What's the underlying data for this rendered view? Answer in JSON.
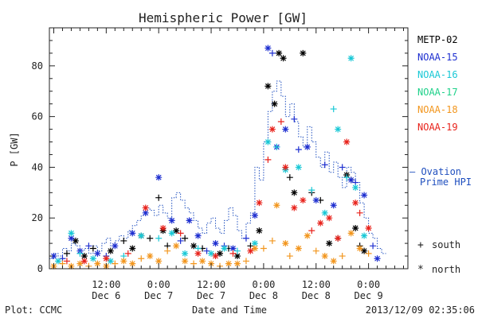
{
  "chart_data": {
    "type": "scatter",
    "title": "Hemispheric Power [GW]",
    "ylabel": "P [GW]",
    "xlabel": "Date and Time",
    "ylim": [
      0,
      95
    ],
    "xlim_hours": [
      -13,
      69
    ],
    "yticks": [
      0,
      20,
      40,
      60,
      80
    ],
    "xticks": [
      {
        "hour": 0,
        "time": "12:00",
        "date": "Dec 6"
      },
      {
        "hour": 12,
        "time": "0:00",
        "date": "Dec 7"
      },
      {
        "hour": 24,
        "time": "12:00",
        "date": "Dec 7"
      },
      {
        "hour": 36,
        "time": "0:00",
        "date": "Dec 8"
      },
      {
        "hour": 48,
        "time": "12:00",
        "date": "Dec 8"
      },
      {
        "hour": 60,
        "time": "0:00",
        "date": "Dec 9"
      }
    ],
    "legend_placement": "right",
    "marker_legend": {
      "south": "south",
      "north": "north",
      "south_symbol": "+",
      "north_symbol": "*"
    },
    "ovation_label": {
      "line1": "— Ovation",
      "line2": "Prime HPI",
      "color": "#1f4fbf"
    },
    "series": [
      {
        "name": "METP-02",
        "color": "#000000",
        "points": [
          {
            "x": -9,
            "y": 6,
            "m": "+"
          },
          {
            "x": -7,
            "y": 11,
            "m": "*"
          },
          {
            "x": -5,
            "y": 5,
            "m": "*"
          },
          {
            "x": -3,
            "y": 8,
            "m": "+"
          },
          {
            "x": 1,
            "y": 7,
            "m": "*"
          },
          {
            "x": 4,
            "y": 11,
            "m": "+"
          },
          {
            "x": 6,
            "y": 8,
            "m": "*"
          },
          {
            "x": 8,
            "y": 13,
            "m": "*"
          },
          {
            "x": 10,
            "y": 12,
            "m": "+"
          },
          {
            "x": 12,
            "y": 28,
            "m": "+"
          },
          {
            "x": 13,
            "y": 15,
            "m": "*"
          },
          {
            "x": 14,
            "y": 9,
            "m": "+"
          },
          {
            "x": 16,
            "y": 15,
            "m": "*"
          },
          {
            "x": 18,
            "y": 12,
            "m": "+"
          },
          {
            "x": 20,
            "y": 9,
            "m": "*"
          },
          {
            "x": 22,
            "y": 8,
            "m": "+"
          },
          {
            "x": 26,
            "y": 6,
            "m": "*"
          },
          {
            "x": 28,
            "y": 8,
            "m": "+"
          },
          {
            "x": 30,
            "y": 5,
            "m": "*"
          },
          {
            "x": 33,
            "y": 9,
            "m": "+"
          },
          {
            "x": 35,
            "y": 15,
            "m": "*"
          },
          {
            "x": 37,
            "y": 72,
            "m": "*"
          },
          {
            "x": 38.5,
            "y": 65,
            "m": "*"
          },
          {
            "x": 39.5,
            "y": 85,
            "m": "*"
          },
          {
            "x": 40.5,
            "y": 83,
            "m": "*"
          },
          {
            "x": 42,
            "y": 36,
            "m": "+"
          },
          {
            "x": 43,
            "y": 30,
            "m": "*"
          },
          {
            "x": 45,
            "y": 85,
            "m": "*"
          },
          {
            "x": 47,
            "y": 30,
            "m": "+"
          },
          {
            "x": 49,
            "y": 27,
            "m": "+"
          },
          {
            "x": 51,
            "y": 10,
            "m": "*"
          },
          {
            "x": 53,
            "y": 12,
            "m": "+"
          },
          {
            "x": 55,
            "y": 37,
            "m": "*"
          },
          {
            "x": 56,
            "y": 35,
            "m": "+"
          },
          {
            "x": 57,
            "y": 16,
            "m": "*"
          },
          {
            "x": 58,
            "y": 9,
            "m": "+"
          },
          {
            "x": 59,
            "y": 7,
            "m": "*"
          }
        ]
      },
      {
        "name": "NOAA-15",
        "color": "#1e2fd0",
        "points": [
          {
            "x": -12,
            "y": 5,
            "m": "*"
          },
          {
            "x": -10,
            "y": 4,
            "m": "+"
          },
          {
            "x": -8,
            "y": 12,
            "m": "*"
          },
          {
            "x": -6,
            "y": 7,
            "m": "*"
          },
          {
            "x": -4,
            "y": 9,
            "m": "+"
          },
          {
            "x": -2,
            "y": 6,
            "m": "*"
          },
          {
            "x": 0,
            "y": 5,
            "m": "+"
          },
          {
            "x": 2,
            "y": 9,
            "m": "*"
          },
          {
            "x": 6,
            "y": 14,
            "m": "*"
          },
          {
            "x": 9,
            "y": 22,
            "m": "*"
          },
          {
            "x": 12,
            "y": 36,
            "m": "*"
          },
          {
            "x": 15,
            "y": 19,
            "m": "*"
          },
          {
            "x": 17,
            "y": 11,
            "m": "+"
          },
          {
            "x": 19,
            "y": 19,
            "m": "*"
          },
          {
            "x": 21,
            "y": 13,
            "m": "*"
          },
          {
            "x": 23,
            "y": 7,
            "m": "+"
          },
          {
            "x": 25,
            "y": 10,
            "m": "*"
          },
          {
            "x": 27,
            "y": 9,
            "m": "+"
          },
          {
            "x": 29,
            "y": 8,
            "m": "*"
          },
          {
            "x": 32,
            "y": 12,
            "m": "+"
          },
          {
            "x": 34,
            "y": 21,
            "m": "*"
          },
          {
            "x": 37,
            "y": 87,
            "m": "*"
          },
          {
            "x": 38,
            "y": 85,
            "m": "+"
          },
          {
            "x": 39,
            "y": 48,
            "m": "*"
          },
          {
            "x": 41,
            "y": 55,
            "m": "*"
          },
          {
            "x": 43,
            "y": 59,
            "m": "+"
          },
          {
            "x": 44,
            "y": 47,
            "m": "+"
          },
          {
            "x": 46,
            "y": 48,
            "m": "*"
          },
          {
            "x": 48,
            "y": 27,
            "m": "*"
          },
          {
            "x": 50,
            "y": 41,
            "m": "+"
          },
          {
            "x": 52,
            "y": 25,
            "m": "*"
          },
          {
            "x": 54,
            "y": 40,
            "m": "+"
          },
          {
            "x": 56,
            "y": 35,
            "m": "*"
          },
          {
            "x": 57,
            "y": 34,
            "m": "+"
          },
          {
            "x": 59,
            "y": 29,
            "m": "*"
          },
          {
            "x": 61,
            "y": 9,
            "m": "+"
          },
          {
            "x": 62,
            "y": 4,
            "m": "*"
          }
        ]
      },
      {
        "name": "NOAA-16",
        "color": "#19c8d6",
        "points": [
          {
            "x": -11,
            "y": 3,
            "m": "*"
          },
          {
            "x": -8,
            "y": 14,
            "m": "*"
          },
          {
            "x": -6,
            "y": 6,
            "m": "+"
          },
          {
            "x": -3,
            "y": 4,
            "m": "*"
          },
          {
            "x": 1,
            "y": 3,
            "m": "*"
          },
          {
            "x": 4,
            "y": 5,
            "m": "+"
          },
          {
            "x": 8,
            "y": 13,
            "m": "*"
          },
          {
            "x": 12,
            "y": 12,
            "m": "+"
          },
          {
            "x": 15,
            "y": 14,
            "m": "*"
          },
          {
            "x": 18,
            "y": 6,
            "m": "*"
          },
          {
            "x": 21,
            "y": 8,
            "m": "+"
          },
          {
            "x": 24,
            "y": 6,
            "m": "*"
          },
          {
            "x": 27,
            "y": 8,
            "m": "*"
          },
          {
            "x": 30,
            "y": 7,
            "m": "+"
          },
          {
            "x": 34,
            "y": 10,
            "m": "*"
          },
          {
            "x": 37,
            "y": 50,
            "m": "*"
          },
          {
            "x": 39,
            "y": 48,
            "m": "+"
          },
          {
            "x": 41,
            "y": 39,
            "m": "*"
          },
          {
            "x": 44,
            "y": 40,
            "m": "*"
          },
          {
            "x": 47,
            "y": 31,
            "m": "+"
          },
          {
            "x": 50,
            "y": 22,
            "m": "*"
          },
          {
            "x": 52,
            "y": 63,
            "m": "+"
          },
          {
            "x": 53,
            "y": 55,
            "m": "*"
          },
          {
            "x": 55,
            "y": 36,
            "m": "+"
          },
          {
            "x": 56,
            "y": 83,
            "m": "*"
          },
          {
            "x": 57,
            "y": 32,
            "m": "*"
          },
          {
            "x": 59,
            "y": 13,
            "m": "*"
          }
        ]
      },
      {
        "name": "NOAA-17",
        "color": "#1fd18a",
        "points": []
      },
      {
        "name": "NOAA-18",
        "color": "#f2961e",
        "points": [
          {
            "x": -12,
            "y": 1,
            "m": "*"
          },
          {
            "x": -10,
            "y": 2,
            "m": "+"
          },
          {
            "x": -8,
            "y": 1,
            "m": "*"
          },
          {
            "x": -6,
            "y": 2,
            "m": "*"
          },
          {
            "x": -4,
            "y": 1,
            "m": "+"
          },
          {
            "x": -2,
            "y": 2,
            "m": "*"
          },
          {
            "x": 0,
            "y": 1,
            "m": "*"
          },
          {
            "x": 2,
            "y": 2,
            "m": "+"
          },
          {
            "x": 4,
            "y": 3,
            "m": "*"
          },
          {
            "x": 6,
            "y": 2,
            "m": "*"
          },
          {
            "x": 8,
            "y": 4,
            "m": "+"
          },
          {
            "x": 10,
            "y": 5,
            "m": "*"
          },
          {
            "x": 12,
            "y": 3,
            "m": "*"
          },
          {
            "x": 14,
            "y": 7,
            "m": "+"
          },
          {
            "x": 16,
            "y": 9,
            "m": "*"
          },
          {
            "x": 18,
            "y": 3,
            "m": "*"
          },
          {
            "x": 20,
            "y": 2,
            "m": "+"
          },
          {
            "x": 22,
            "y": 3,
            "m": "*"
          },
          {
            "x": 24,
            "y": 2,
            "m": "*"
          },
          {
            "x": 26,
            "y": 1,
            "m": "+"
          },
          {
            "x": 28,
            "y": 2,
            "m": "*"
          },
          {
            "x": 30,
            "y": 2,
            "m": "*"
          },
          {
            "x": 32,
            "y": 3,
            "m": "+"
          },
          {
            "x": 34,
            "y": 8,
            "m": "*"
          },
          {
            "x": 36,
            "y": 8,
            "m": "+"
          },
          {
            "x": 38,
            "y": 11,
            "m": "+"
          },
          {
            "x": 39,
            "y": 25,
            "m": "*"
          },
          {
            "x": 41,
            "y": 10,
            "m": "*"
          },
          {
            "x": 42,
            "y": 5,
            "m": "+"
          },
          {
            "x": 44,
            "y": 8,
            "m": "*"
          },
          {
            "x": 46,
            "y": 13,
            "m": "*"
          },
          {
            "x": 48,
            "y": 7,
            "m": "+"
          },
          {
            "x": 50,
            "y": 5,
            "m": "*"
          },
          {
            "x": 52,
            "y": 3,
            "m": "*"
          },
          {
            "x": 54,
            "y": 5,
            "m": "+"
          },
          {
            "x": 56,
            "y": 14,
            "m": "*"
          },
          {
            "x": 58,
            "y": 8,
            "m": "*"
          },
          {
            "x": 60,
            "y": 6,
            "m": "+"
          }
        ]
      },
      {
        "name": "NOAA-19",
        "color": "#e8231c",
        "points": [
          {
            "x": -9,
            "y": 3,
            "m": "+"
          },
          {
            "x": -5,
            "y": 3,
            "m": "*"
          },
          {
            "x": 0,
            "y": 4,
            "m": "*"
          },
          {
            "x": 5,
            "y": 6,
            "m": "+"
          },
          {
            "x": 9,
            "y": 24,
            "m": "*"
          },
          {
            "x": 13,
            "y": 16,
            "m": "*"
          },
          {
            "x": 17,
            "y": 14,
            "m": "+"
          },
          {
            "x": 21,
            "y": 6,
            "m": "*"
          },
          {
            "x": 25,
            "y": 5,
            "m": "*"
          },
          {
            "x": 29,
            "y": 6,
            "m": "+"
          },
          {
            "x": 33,
            "y": 7,
            "m": "*"
          },
          {
            "x": 35,
            "y": 26,
            "m": "*"
          },
          {
            "x": 37,
            "y": 43,
            "m": "+"
          },
          {
            "x": 38,
            "y": 55,
            "m": "*"
          },
          {
            "x": 40,
            "y": 58,
            "m": "+"
          },
          {
            "x": 41,
            "y": 40,
            "m": "*"
          },
          {
            "x": 43,
            "y": 24,
            "m": "*"
          },
          {
            "x": 45,
            "y": 27,
            "m": "*"
          },
          {
            "x": 47,
            "y": 15,
            "m": "+"
          },
          {
            "x": 49,
            "y": 18,
            "m": "*"
          },
          {
            "x": 51,
            "y": 20,
            "m": "*"
          },
          {
            "x": 53,
            "y": 12,
            "m": "*"
          },
          {
            "x": 55,
            "y": 50,
            "m": "*"
          },
          {
            "x": 57,
            "y": 26,
            "m": "*"
          },
          {
            "x": 58,
            "y": 22,
            "m": "+"
          },
          {
            "x": 60,
            "y": 16,
            "m": "*"
          }
        ]
      }
    ],
    "ovation_steps": [
      [
        -13,
        4
      ],
      [
        -12,
        6
      ],
      [
        -11,
        5
      ],
      [
        -10,
        8
      ],
      [
        -9,
        7
      ],
      [
        -8,
        10
      ],
      [
        -7,
        9
      ],
      [
        -6,
        7
      ],
      [
        -5,
        8
      ],
      [
        -4,
        6
      ],
      [
        -3,
        9
      ],
      [
        -2,
        7
      ],
      [
        -1,
        10
      ],
      [
        0,
        12
      ],
      [
        1,
        9
      ],
      [
        2,
        11
      ],
      [
        3,
        13
      ],
      [
        4,
        12
      ],
      [
        5,
        15
      ],
      [
        6,
        17
      ],
      [
        7,
        19
      ],
      [
        8,
        21
      ],
      [
        9,
        24
      ],
      [
        10,
        23
      ],
      [
        11,
        21
      ],
      [
        12,
        25
      ],
      [
        13,
        22
      ],
      [
        14,
        20
      ],
      [
        15,
        28
      ],
      [
        16,
        30
      ],
      [
        17,
        27
      ],
      [
        18,
        24
      ],
      [
        19,
        22
      ],
      [
        20,
        19
      ],
      [
        21,
        16
      ],
      [
        22,
        14
      ],
      [
        23,
        18
      ],
      [
        24,
        20
      ],
      [
        25,
        16
      ],
      [
        26,
        14
      ],
      [
        27,
        19
      ],
      [
        28,
        24
      ],
      [
        29,
        21
      ],
      [
        30,
        15
      ],
      [
        31,
        12
      ],
      [
        32,
        18
      ],
      [
        33,
        22
      ],
      [
        34,
        40
      ],
      [
        35,
        35
      ],
      [
        36,
        50
      ],
      [
        37,
        62
      ],
      [
        38,
        70
      ],
      [
        39,
        74
      ],
      [
        40,
        68
      ],
      [
        41,
        60
      ],
      [
        42,
        65
      ],
      [
        43,
        58
      ],
      [
        44,
        52
      ],
      [
        45,
        48
      ],
      [
        46,
        56
      ],
      [
        47,
        50
      ],
      [
        48,
        44
      ],
      [
        49,
        40
      ],
      [
        50,
        46
      ],
      [
        51,
        38
      ],
      [
        52,
        42
      ],
      [
        53,
        36
      ],
      [
        54,
        32
      ],
      [
        55,
        40
      ],
      [
        56,
        38
      ],
      [
        57,
        34
      ],
      [
        58,
        26
      ],
      [
        59,
        20
      ],
      [
        60,
        14
      ],
      [
        61,
        12
      ],
      [
        62,
        8
      ],
      [
        63,
        6
      ]
    ]
  },
  "footer": {
    "left": "Plot: CCMC",
    "center": "Date and Time",
    "right": "2013/12/09 02:35:06"
  }
}
